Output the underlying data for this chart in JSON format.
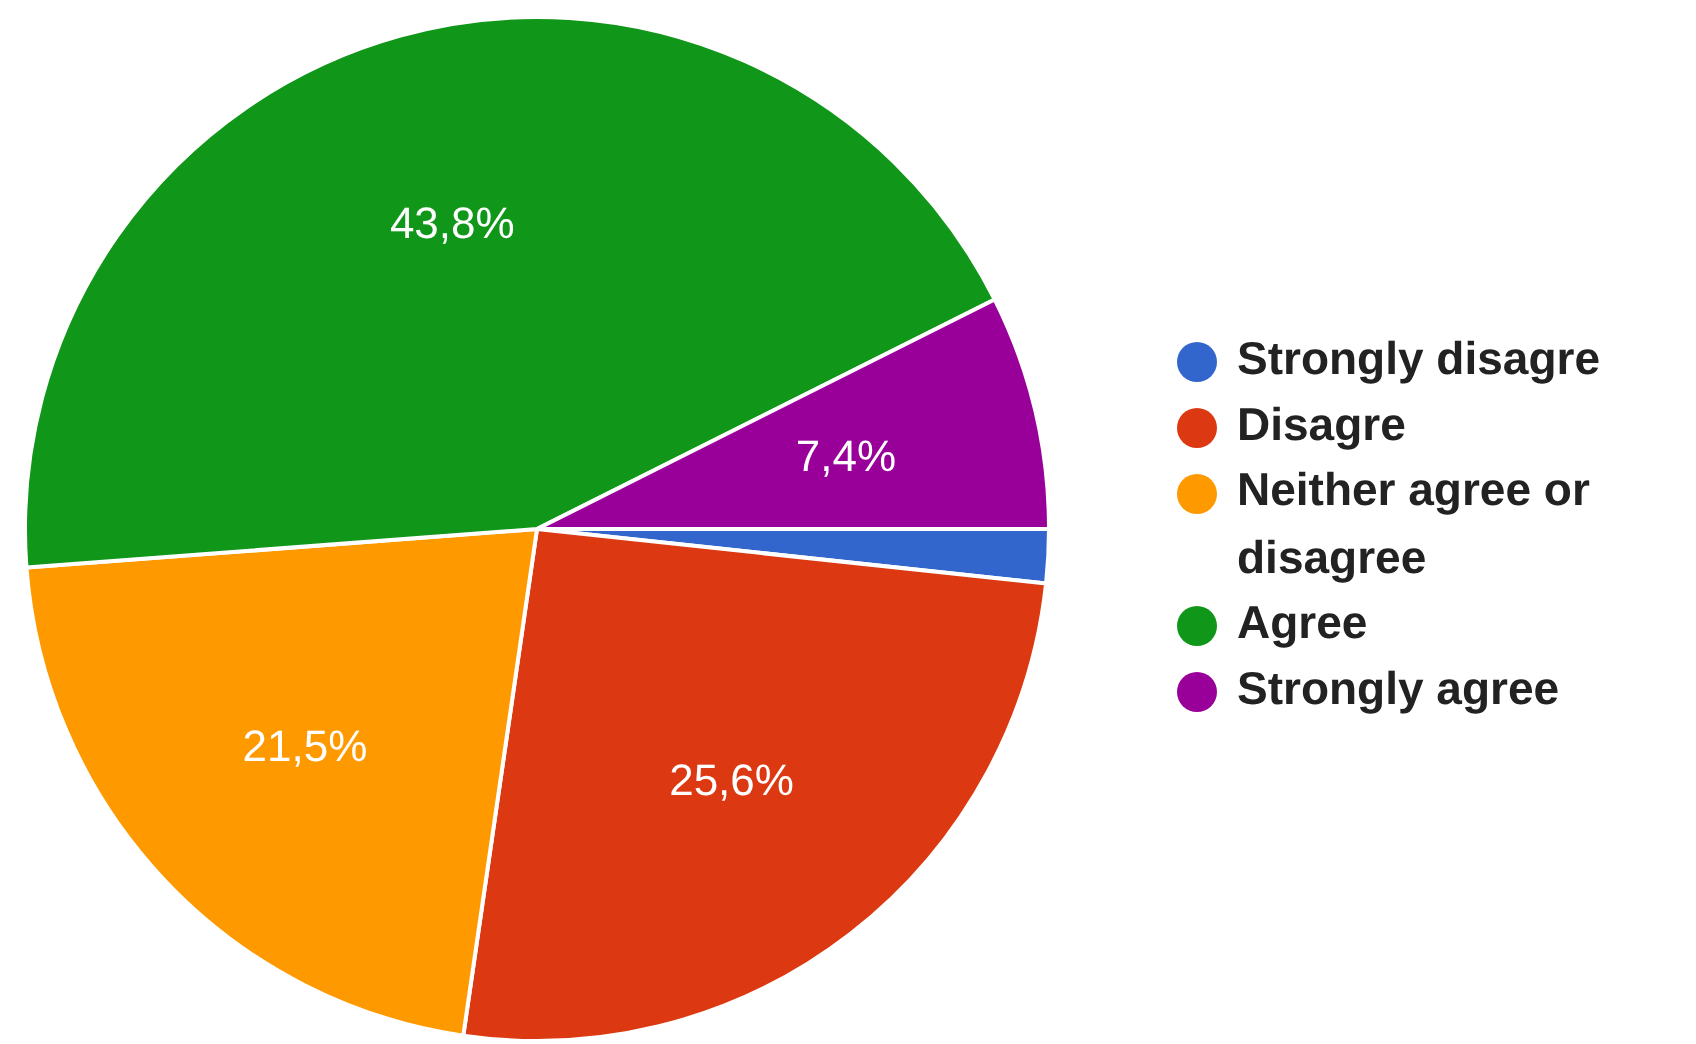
{
  "chart_data": {
    "type": "pie",
    "categories": [
      "Strongly disagre",
      "Disagre",
      "Neither agree or disagree",
      "Agree",
      "Strongly agree"
    ],
    "values": [
      1.7,
      25.6,
      21.5,
      43.8,
      7.4
    ],
    "colors": [
      "#3366cc",
      "#dc3912",
      "#ff9900",
      "#109618",
      "#990099"
    ],
    "value_labels": [
      null,
      "25,6%",
      "21,5%",
      "43,8%",
      "7,4%"
    ],
    "legend": "right"
  }
}
